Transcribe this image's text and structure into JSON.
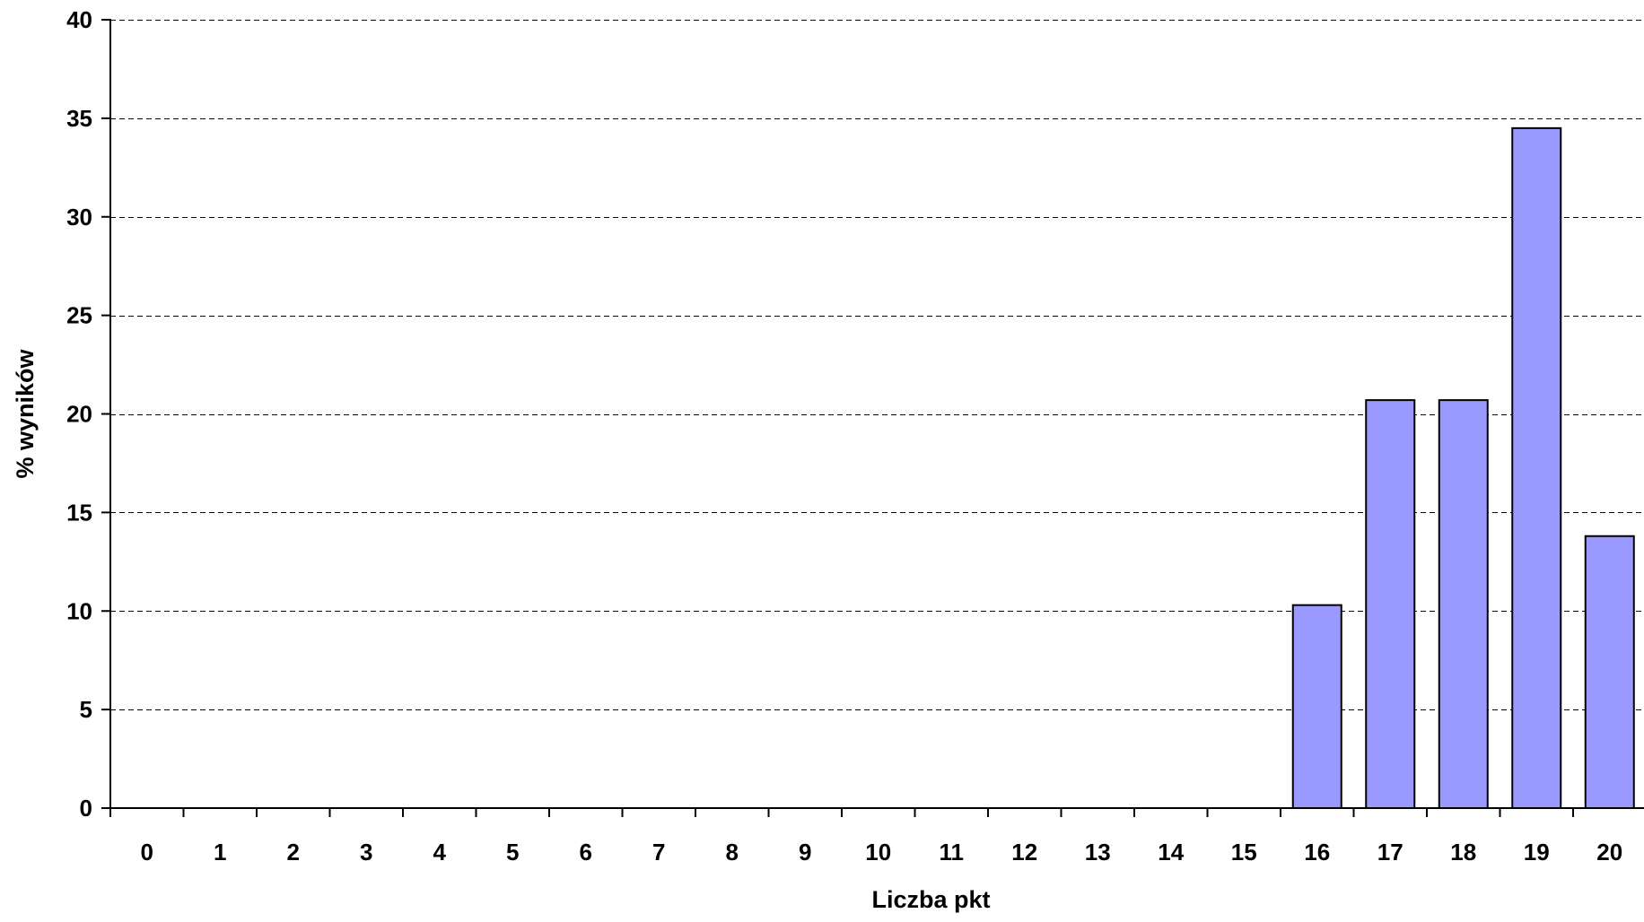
{
  "chart_data": {
    "type": "bar",
    "title": "",
    "xlabel": "Liczba pkt",
    "ylabel": "% wyników",
    "categories": [
      "0",
      "1",
      "2",
      "3",
      "4",
      "5",
      "6",
      "7",
      "8",
      "9",
      "10",
      "11",
      "12",
      "13",
      "14",
      "15",
      "16",
      "17",
      "18",
      "19",
      "20"
    ],
    "values": [
      0,
      0,
      0,
      0,
      0,
      0,
      0,
      0,
      0,
      0,
      0,
      0,
      0,
      0,
      0,
      0,
      10.3,
      20.7,
      20.7,
      34.5,
      13.8
    ],
    "ylim": [
      0,
      40
    ],
    "yticks": [
      0,
      5,
      10,
      15,
      20,
      25,
      30,
      35,
      40
    ],
    "grid": "horizontal dashed",
    "legend": "none",
    "colors": {
      "bar_fill": "#9999FF",
      "bar_stroke": "#000000",
      "grid": "#000000",
      "axis": "#000000",
      "background": "#FFFFFF"
    }
  }
}
